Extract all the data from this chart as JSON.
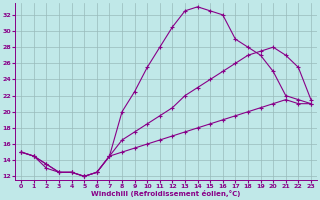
{
  "xlabel": "Windchill (Refroidissement éolien,°C)",
  "xlim": [
    -0.5,
    23.5
  ],
  "ylim": [
    11.5,
    33.5
  ],
  "yticks": [
    12,
    14,
    16,
    18,
    20,
    22,
    24,
    26,
    28,
    30,
    32
  ],
  "xticks": [
    0,
    1,
    2,
    3,
    4,
    5,
    6,
    7,
    8,
    9,
    10,
    11,
    12,
    13,
    14,
    15,
    16,
    17,
    18,
    19,
    20,
    21,
    22,
    23
  ],
  "bg_color": "#c0e8e8",
  "line_color": "#880088",
  "grid_color": "#99bbbb",
  "curve1_x": [
    0,
    1,
    2,
    3,
    4,
    5,
    6,
    7,
    8,
    9,
    10,
    11,
    12,
    13,
    14,
    15,
    16,
    17,
    18,
    19,
    20,
    21,
    22,
    23
  ],
  "curve1_y": [
    15,
    14.5,
    13,
    12.5,
    12.5,
    12,
    12.5,
    14.5,
    20,
    22.5,
    25.5,
    28,
    30.5,
    32.5,
    33,
    32.5,
    32,
    29,
    28,
    27,
    25,
    22,
    21.5,
    21
  ],
  "curve2_x": [
    0,
    1,
    2,
    3,
    4,
    5,
    6,
    7,
    8,
    9,
    10,
    11,
    12,
    13,
    14,
    15,
    16,
    17,
    18,
    19,
    20,
    21,
    22,
    23
  ],
  "curve2_y": [
    15,
    14.5,
    13.5,
    12.5,
    12.5,
    12,
    12.5,
    14.5,
    16.5,
    17.5,
    18.5,
    19.5,
    20.5,
    22,
    23,
    24,
    25,
    26,
    27,
    27.5,
    28,
    27,
    25.5,
    21.5
  ],
  "curve3_x": [
    0,
    1,
    2,
    3,
    4,
    5,
    6,
    7,
    8,
    9,
    10,
    11,
    12,
    13,
    14,
    15,
    16,
    17,
    18,
    19,
    20,
    21,
    22,
    23
  ],
  "curve3_y": [
    15,
    14.5,
    13.5,
    12.5,
    12.5,
    12,
    12.5,
    14.5,
    15,
    15.5,
    16,
    16.5,
    17,
    17.5,
    18,
    18.5,
    19,
    19.5,
    20,
    20.5,
    21,
    21.5,
    21,
    21
  ]
}
